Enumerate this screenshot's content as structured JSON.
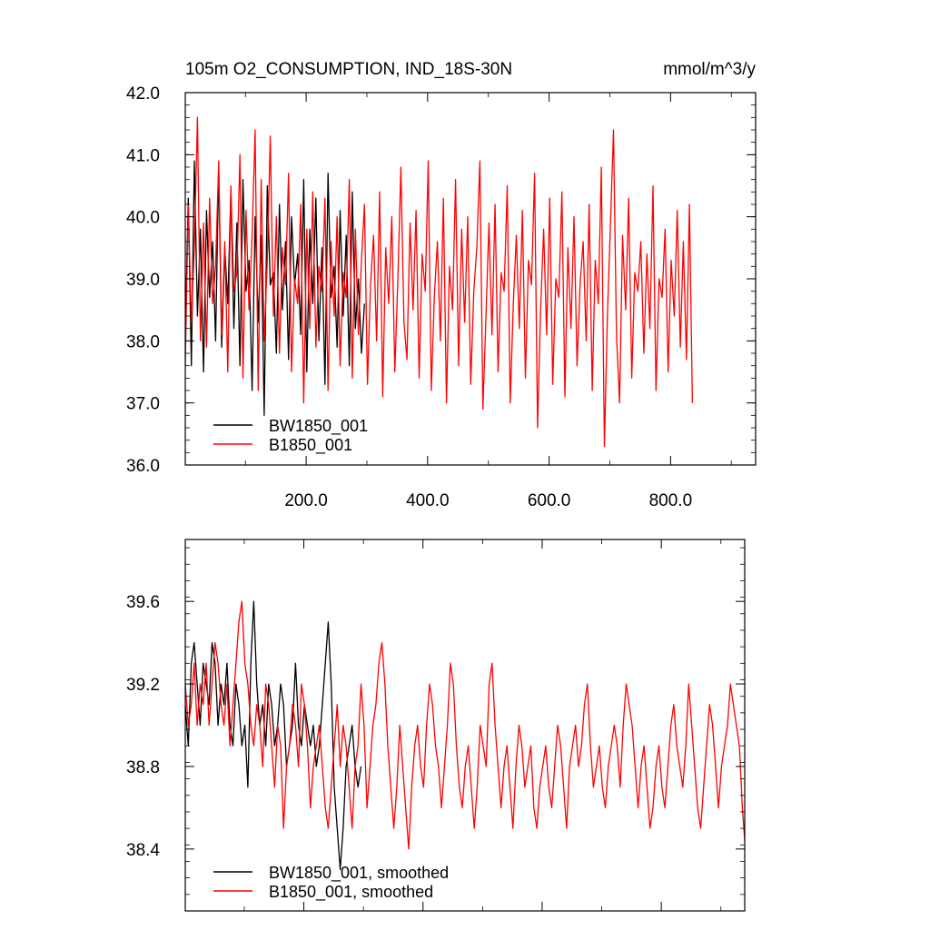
{
  "header": {
    "title": "105m O2_CONSUMPTION, IND_18S-30N",
    "units": "mmol/m^3/y"
  },
  "colors": {
    "series_a": "#000000",
    "series_b": "#ff0000",
    "frame": "#000000"
  },
  "chart_data": [
    {
      "type": "line",
      "xlim": [
        1,
        940
      ],
      "ylim": [
        36.0,
        42.0
      ],
      "xticks": [
        200,
        400,
        600,
        800
      ],
      "xtick_labels": [
        "200.0",
        "400.0",
        "600.0",
        "800.0"
      ],
      "yticks": [
        36,
        37,
        38,
        39,
        40,
        41,
        42
      ],
      "ytick_labels": [
        "36.0",
        "37.0",
        "38.0",
        "39.0",
        "40.0",
        "41.0",
        "42.0"
      ],
      "grid": false,
      "legend_position": "bottom-left",
      "series": [
        {
          "name": "BW1850_001",
          "color": "#000000",
          "x_start": 1,
          "x_step": 5,
          "values": [
            38.1,
            40.3,
            37.6,
            40.9,
            38.4,
            39.8,
            37.5,
            40.1,
            38.7,
            39.6,
            38.0,
            40.8,
            37.9,
            39.5,
            38.6,
            40.4,
            38.2,
            39.9,
            37.6,
            40.6,
            38.8,
            39.3,
            37.2,
            40.0,
            38.3,
            39.7,
            36.8,
            40.5,
            38.9,
            39.1,
            37.8,
            40.2,
            38.5,
            39.6,
            37.7,
            40.0,
            38.9,
            39.4,
            38.1,
            40.6,
            37.5,
            39.8,
            38.6,
            40.3,
            38.0,
            39.5,
            37.3,
            40.7,
            38.7,
            39.2,
            37.9,
            40.1,
            38.4,
            39.7,
            37.6,
            40.4,
            38.2,
            39.0,
            37.8,
            38.6
          ]
        },
        {
          "name": "B1850_001",
          "color": "#ff0000",
          "x_start": 1,
          "x_step": 5,
          "values": [
            37.6,
            40.2,
            38.3,
            39.5,
            41.6,
            38.0,
            39.9,
            37.9,
            40.3,
            38.6,
            39.2,
            40.9,
            38.1,
            39.6,
            37.5,
            40.5,
            38.8,
            39.1,
            41.0,
            37.4,
            40.1,
            38.5,
            39.7,
            41.4,
            37.2,
            40.6,
            38.0,
            39.3,
            41.3,
            38.4,
            40.0,
            37.8,
            39.5,
            38.9,
            40.7,
            37.5,
            39.0,
            38.6,
            40.2,
            37.0,
            39.8,
            38.2,
            40.4,
            37.9,
            39.2,
            38.8,
            40.3,
            37.2,
            39.6,
            38.4,
            40.0,
            37.6,
            39.1,
            38.7,
            40.6,
            37.4,
            39.8,
            38.1,
            39.3,
            40.2,
            37.3,
            38.9,
            39.7,
            38.0,
            40.4,
            37.1,
            39.5,
            38.6,
            40.0,
            37.5,
            39.0,
            40.8,
            38.3,
            37.7,
            39.9,
            38.5,
            40.1,
            37.4,
            39.4,
            38.8,
            40.9,
            37.2,
            38.7,
            39.6,
            38.0,
            40.3,
            37.0,
            39.2,
            38.5,
            40.6,
            37.6,
            39.8,
            38.3,
            40.0,
            37.3,
            38.8,
            39.5,
            40.9,
            36.9,
            38.4,
            39.9,
            38.1,
            40.2,
            37.5,
            39.1,
            38.8,
            40.5,
            37.0,
            38.6,
            39.7,
            38.2,
            40.1,
            37.4,
            39.3,
            38.9,
            40.7,
            36.6,
            38.5,
            39.8,
            38.1,
            40.3,
            37.3,
            39.0,
            38.7,
            40.4,
            37.1,
            39.5,
            38.2,
            40.0,
            37.6,
            38.9,
            39.6,
            38.0,
            40.2,
            37.2,
            39.3,
            38.6,
            40.8,
            36.3,
            38.4,
            39.9,
            41.4,
            38.1,
            37.0,
            39.7,
            38.5,
            40.3,
            37.4,
            39.1,
            38.8,
            39.6,
            37.8,
            39.4,
            38.2,
            40.5,
            37.2,
            39.0,
            38.7,
            39.8,
            37.5,
            39.3,
            38.4,
            40.1,
            37.9,
            39.6,
            37.7,
            40.2,
            37.0
          ]
        }
      ]
    },
    {
      "type": "line",
      "xlim": [
        1,
        940
      ],
      "ylim": [
        38.1,
        39.9
      ],
      "yticks": [
        38.4,
        38.8,
        39.2,
        39.6
      ],
      "ytick_labels": [
        "38.4",
        "38.8",
        "39.2",
        "39.6"
      ],
      "grid": false,
      "legend_position": "bottom-left",
      "series": [
        {
          "name": "BW1850_001, smoothed",
          "color": "#000000",
          "x_start": 1,
          "x_step": 5,
          "values": [
            39.1,
            38.9,
            39.3,
            39.4,
            39.2,
            39.0,
            39.3,
            39.2,
            39.1,
            39.4,
            39.3,
            39.0,
            39.2,
            39.1,
            39.3,
            39.0,
            38.9,
            39.2,
            39.1,
            38.9,
            39.0,
            38.7,
            39.3,
            39.6,
            39.2,
            39.0,
            39.1,
            38.9,
            39.2,
            39.1,
            38.9,
            39.0,
            39.2,
            39.1,
            38.8,
            38.9,
            39.0,
            39.3,
            39.0,
            38.9,
            39.1,
            39.0,
            38.9,
            39.0,
            38.8,
            38.9,
            39.1,
            39.3,
            39.5,
            39.2,
            38.7,
            38.5,
            38.3,
            38.5,
            38.8,
            38.9,
            39.0,
            38.8,
            38.7,
            38.8
          ]
        },
        {
          "name": "B1850_001, smoothed",
          "color": "#ff0000",
          "x_start": 1,
          "x_step": 5,
          "values": [
            39.2,
            39.0,
            39.1,
            39.3,
            39.0,
            39.2,
            39.1,
            39.3,
            39.0,
            39.2,
            39.4,
            39.3,
            39.1,
            39.0,
            39.2,
            38.9,
            39.1,
            39.3,
            39.5,
            39.6,
            39.3,
            39.2,
            39.0,
            38.9,
            39.1,
            39.0,
            38.8,
            39.2,
            39.1,
            38.9,
            38.7,
            39.0,
            38.9,
            38.5,
            38.8,
            38.9,
            39.1,
            39.0,
            38.8,
            39.2,
            39.1,
            38.9,
            38.6,
            38.8,
            38.9,
            39.0,
            38.8,
            38.6,
            38.5,
            38.7,
            38.9,
            39.1,
            38.8,
            39.0,
            38.9,
            38.7,
            38.5,
            38.8,
            38.9,
            39.2,
            39.0,
            38.6,
            38.8,
            39.0,
            39.1,
            39.3,
            39.4,
            39.2,
            38.9,
            38.7,
            38.5,
            38.7,
            39.0,
            38.8,
            38.6,
            38.4,
            38.7,
            38.9,
            39.0,
            38.8,
            38.7,
            39.0,
            39.2,
            39.1,
            38.9,
            38.8,
            38.6,
            38.8,
            39.0,
            39.3,
            39.2,
            38.9,
            38.7,
            38.6,
            38.8,
            38.9,
            38.7,
            38.5,
            38.7,
            39.0,
            38.9,
            38.8,
            39.2,
            39.3,
            39.0,
            38.8,
            38.6,
            38.8,
            38.9,
            38.7,
            38.5,
            38.8,
            39.0,
            38.9,
            38.7,
            38.8,
            38.9,
            38.6,
            38.5,
            38.7,
            38.8,
            38.9,
            38.7,
            38.6,
            38.8,
            39.0,
            38.9,
            38.7,
            38.5,
            38.8,
            38.9,
            39.0,
            38.8,
            38.9,
            39.1,
            39.2,
            38.9,
            38.7,
            38.8,
            38.9,
            38.7,
            38.6,
            38.8,
            38.9,
            39.0,
            38.9,
            38.7,
            39.0,
            39.2,
            39.1,
            39.0,
            38.8,
            38.6,
            38.8,
            38.9,
            38.7,
            38.5,
            38.6,
            38.8,
            38.9,
            38.7,
            38.6,
            38.8,
            39.0,
            39.1,
            38.9,
            38.8,
            38.7,
            38.9,
            39.2,
            39.0,
            38.8,
            38.6,
            38.5,
            38.7,
            38.9,
            39.1,
            39.0,
            38.8,
            38.6,
            38.8,
            38.9,
            39.0,
            39.2,
            39.1,
            39.0,
            38.9,
            38.6,
            38.4,
            38.6
          ]
        }
      ]
    }
  ]
}
